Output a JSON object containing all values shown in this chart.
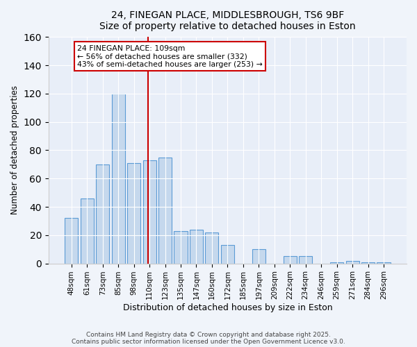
{
  "title": "24, FINEGAN PLACE, MIDDLESBROUGH, TS6 9BF",
  "subtitle": "Size of property relative to detached houses in Eston",
  "xlabel": "Distribution of detached houses by size in Eston",
  "ylabel": "Number of detached properties",
  "bar_labels": [
    "48sqm",
    "61sqm",
    "73sqm",
    "85sqm",
    "98sqm",
    "110sqm",
    "123sqm",
    "135sqm",
    "147sqm",
    "160sqm",
    "172sqm",
    "185sqm",
    "197sqm",
    "209sqm",
    "222sqm",
    "234sqm",
    "246sqm",
    "259sqm",
    "271sqm",
    "284sqm",
    "296sqm"
  ],
  "bar_values": [
    32,
    46,
    70,
    120,
    71,
    73,
    75,
    23,
    24,
    22,
    13,
    0,
    10,
    0,
    5,
    5,
    0,
    1,
    2,
    1,
    1
  ],
  "bar_color": "#c5d8ed",
  "bar_edge_color": "#5b9bd5",
  "vline_position": 4.925,
  "marker_label": "24 FINEGAN PLACE: 109sqm",
  "annotation_line1": "← 56% of detached houses are smaller (332)",
  "annotation_line2": "43% of semi-detached houses are larger (253) →",
  "vline_color": "#cc0000",
  "ylim": [
    0,
    160
  ],
  "yticks": [
    0,
    20,
    40,
    60,
    80,
    100,
    120,
    140,
    160
  ],
  "footer1": "Contains HM Land Registry data © Crown copyright and database right 2025.",
  "footer2": "Contains public sector information licensed under the Open Government Licence v3.0.",
  "bg_color": "#f0f4fa",
  "plot_bg_color": "#e8eef8"
}
